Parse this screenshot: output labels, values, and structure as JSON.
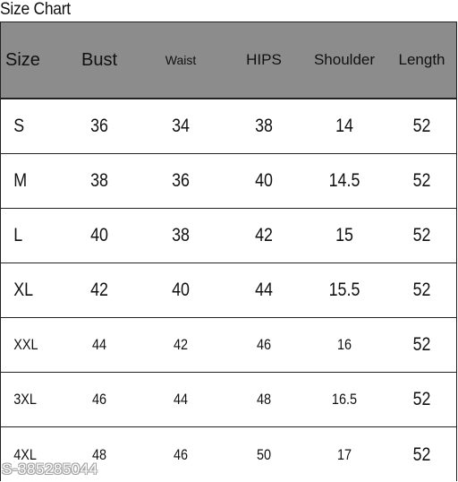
{
  "title": "Size Chart",
  "headers": [
    "Size",
    "Bust",
    "Waist",
    "HIPS",
    "Shoulder",
    "Length"
  ],
  "rows": [
    [
      "S",
      "36",
      "34",
      "38",
      "14",
      "52"
    ],
    [
      "M",
      "38",
      "36",
      "40",
      "14.5",
      "52"
    ],
    [
      "L",
      "40",
      "38",
      "42",
      "15",
      "52"
    ],
    [
      "XL",
      "42",
      "40",
      "44",
      "15.5",
      "52"
    ],
    [
      "XXL",
      "44",
      "42",
      "46",
      "16",
      "52"
    ],
    [
      "3XL",
      "46",
      "44",
      "48",
      "16.5",
      "52"
    ],
    [
      "4XL",
      "48",
      "46",
      "50",
      "17",
      "52"
    ]
  ],
  "watermark": "S-385285044",
  "colors": {
    "header_bg": "#8c8c8c",
    "border": "#222222",
    "text": "#111111"
  }
}
